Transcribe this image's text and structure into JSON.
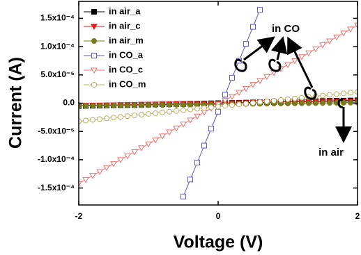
{
  "chart_data": {
    "type": "line",
    "x_label": "Voltage (V)",
    "y_label": "Current (A)",
    "xlim": [
      -2,
      2
    ],
    "xticks": [
      -2,
      0,
      2
    ],
    "ylim": [
      -0.00018,
      0.00018
    ],
    "yticks": [
      {
        "value": -0.00015,
        "label": "-1.5x10⁻⁴"
      },
      {
        "value": -0.0001,
        "label": "-1.0x10⁻⁴"
      },
      {
        "value": -5e-05,
        "label": "-5.0x10⁻⁵"
      },
      {
        "value": 0,
        "label": "0.0"
      },
      {
        "value": 5e-05,
        "label": "5.0x10⁻⁵"
      },
      {
        "value": 0.0001,
        "label": "1.0x10⁻⁴"
      },
      {
        "value": 0.00015,
        "label": "1.5x10⁻⁴"
      }
    ],
    "legend": "top-left",
    "annotations": [
      "in CO",
      "in air"
    ],
    "x": [
      -2,
      -1.9,
      -1.8,
      -1.7,
      -1.6,
      -1.5,
      -1.4,
      -1.3,
      -1.2,
      -1.1,
      -1,
      -0.9,
      -0.8,
      -0.7,
      -0.6,
      -0.5,
      -0.4,
      -0.3,
      -0.2,
      -0.1,
      0,
      0.1,
      0.2,
      0.3,
      0.4,
      0.5,
      0.6,
      0.7,
      0.8,
      0.9,
      1,
      1.1,
      1.2,
      1.3,
      1.4,
      1.5,
      1.6,
      1.7,
      1.8,
      1.9,
      2
    ],
    "series": [
      {
        "name": "in air_a",
        "color": "#000000",
        "marker": "square",
        "filled": true,
        "values": [
          -5e-06,
          -4.75e-06,
          -4.5e-06,
          -4.25e-06,
          -4e-06,
          -3.75e-06,
          -3.5e-06,
          -3.25e-06,
          -3e-06,
          -2.75e-06,
          -2.5e-06,
          -2.25e-06,
          -2e-06,
          -1.75e-06,
          -1.5e-06,
          -1.25e-06,
          -1e-06,
          -7.5e-07,
          -5e-07,
          -2.5e-07,
          0,
          2.5e-07,
          5e-07,
          7.5e-07,
          1e-06,
          1.25e-06,
          1.5e-06,
          1.75e-06,
          2e-06,
          2.25e-06,
          2.5e-06,
          2.75e-06,
          3e-06,
          3.25e-06,
          3.5e-06,
          3.75e-06,
          4e-06,
          4.25e-06,
          4.5e-06,
          4.75e-06,
          5e-06
        ]
      },
      {
        "name": "in air_c",
        "color": "#e8161b",
        "marker": "triangle-down",
        "filled": true,
        "values": [
          -4e-06,
          -3.8e-06,
          -3.6e-06,
          -3.4e-06,
          -3.2e-06,
          -3e-06,
          -2.8e-06,
          -2.6e-06,
          -2.4e-06,
          -2.2e-06,
          -2e-06,
          -1.8e-06,
          -1.6e-06,
          -1.4e-06,
          -1.2e-06,
          -1e-06,
          -8e-07,
          -6e-07,
          -4e-07,
          -2e-07,
          0,
          2e-07,
          4e-07,
          6e-07,
          8e-07,
          1e-06,
          1.2e-06,
          1.4e-06,
          1.6e-06,
          1.8e-06,
          2e-06,
          2.2e-06,
          2.4e-06,
          2.6e-06,
          2.8e-06,
          3e-06,
          3.2e-06,
          3.4e-06,
          3.6e-06,
          3.8e-06,
          4e-06
        ]
      },
      {
        "name": "in air_m",
        "color": "#7a7a1e",
        "marker": "circle",
        "filled": true,
        "values": [
          -5e-06,
          -4.85e-06,
          -4.7e-06,
          -4.55e-06,
          -4.4e-06,
          -4.25e-06,
          -4.1e-06,
          -3.95e-06,
          -3.8e-06,
          -3.65e-06,
          -3.5e-06,
          -3.35e-06,
          -3.2e-06,
          -3.05e-06,
          -2.9e-06,
          -2.75e-06,
          -2.6e-06,
          -2.45e-06,
          -2.3e-06,
          -2.15e-06,
          -2e-06,
          -1.85e-06,
          -1.7e-06,
          -1.55e-06,
          -1.4e-06,
          -1.25e-06,
          -1.1e-06,
          -9.5e-07,
          -8e-07,
          -6.5e-07,
          -5e-07,
          -3.5e-07,
          -2e-07,
          -5e-08,
          1e-07,
          2.5e-07,
          4e-07,
          5.5e-07,
          7e-07,
          8.5e-07,
          1e-06
        ]
      },
      {
        "name": "in CO_a",
        "color": "#5a5ac8",
        "marker": "square",
        "filled": false,
        "values": [
          null,
          null,
          null,
          null,
          null,
          null,
          null,
          null,
          null,
          null,
          null,
          null,
          null,
          null,
          null,
          -0.000165,
          -0.000135,
          -0.000105,
          -7.5e-05,
          -4.5e-05,
          -1.5e-05,
          1.5e-05,
          4.5e-05,
          7.5e-05,
          0.000105,
          0.000135,
          0.000165,
          null,
          null,
          null,
          null,
          null,
          null,
          null,
          null,
          null,
          null,
          null,
          null,
          null,
          null
        ]
      },
      {
        "name": "in CO_c",
        "color": "#f07070",
        "marker": "triangle-down",
        "filled": false,
        "values": [
          -0.000142,
          -0.000135,
          -0.000128,
          -0.000121,
          -0.000114,
          -0.000107,
          -0.0001,
          -9.3e-05,
          -8.6e-05,
          -7.9e-05,
          -7.2e-05,
          -6.5e-05,
          -5.8e-05,
          -5.1e-05,
          -4.4e-05,
          -3.7e-05,
          -3e-05,
          -2.3e-05,
          -1.6e-05,
          -9e-06,
          -2e-06,
          5e-06,
          1.2e-05,
          1.9e-05,
          2.6e-05,
          3.3e-05,
          4e-05,
          4.7e-05,
          5.4e-05,
          6.1e-05,
          6.8e-05,
          7.5e-05,
          8.2e-05,
          8.9e-05,
          9.6e-05,
          0.000103,
          0.00011,
          0.000117,
          0.000124,
          0.000131,
          0.000138
        ]
      },
      {
        "name": "in CO_m",
        "color": "#b8b060",
        "marker": "circle",
        "filled": false,
        "values": [
          -3.2e-05,
          -3.07e-05,
          -2.94e-05,
          -2.81e-05,
          -2.68e-05,
          -2.55e-05,
          -2.42e-05,
          -2.29e-05,
          -2.16e-05,
          -2.03e-05,
          -1.9e-05,
          -1.77e-05,
          -1.64e-05,
          -1.51e-05,
          -1.38e-05,
          -1.25e-05,
          -1.12e-05,
          -9.9e-06,
          -8.6e-06,
          -7.3e-06,
          -6e-06,
          -4.7e-06,
          -3.4e-06,
          -2.1e-06,
          -8e-07,
          5e-07,
          1.8e-06,
          3.1e-06,
          4.4e-06,
          5.7e-06,
          7e-06,
          8.3e-06,
          9.6e-06,
          1.09e-05,
          1.22e-05,
          1.35e-05,
          1.48e-05,
          1.61e-05,
          1.74e-05,
          1.87e-05,
          2e-05
        ]
      }
    ]
  }
}
